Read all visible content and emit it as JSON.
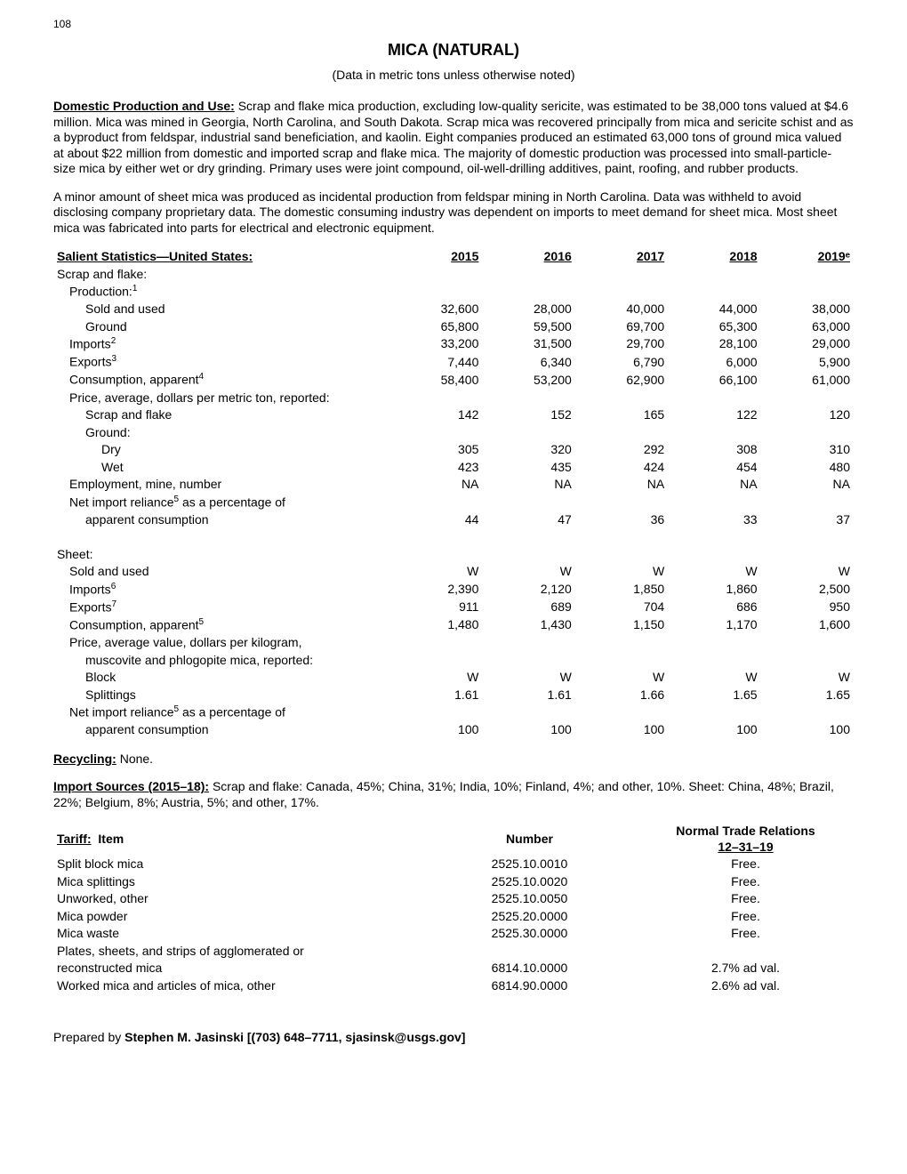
{
  "page_number": "108",
  "title": "MICA (NATURAL)",
  "subtitle": "(Data in metric tons unless otherwise noted)",
  "section1_label": "Domestic Production and Use:",
  "section1_text": " Scrap and flake mica production, excluding low-quality sericite, was estimated to be 38,000 tons valued at $4.6 million. Mica was mined in Georgia, North Carolina, and South Dakota. Scrap mica was recovered principally from mica and sericite schist and as a byproduct from feldspar, industrial sand beneficiation, and kaolin. Eight companies produced an estimated 63,000 tons of ground mica valued at about $22 million from domestic and imported scrap and flake mica. The majority of domestic production was processed into small-particle-size mica by either wet or dry grinding. Primary uses were joint compound, oil-well-drilling additives, paint, roofing, and rubber products.",
  "section1_para2": "A minor amount of sheet mica was produced as incidental production from feldspar mining in North Carolina. Data was withheld to avoid disclosing company proprietary data. The domestic consuming industry was dependent on imports to meet demand for sheet mica. Most sheet mica was fabricated into parts for electrical and electronic equipment.",
  "stats_label": "Salient Statistics—United States:",
  "years": [
    "2015",
    "2016",
    "2017",
    "2018",
    "2019ᵉ"
  ],
  "stats_rows": [
    {
      "label": "Scrap and flake:",
      "indent": 0,
      "vals": [
        "",
        "",
        "",
        "",
        ""
      ]
    },
    {
      "label": "Production:",
      "sup": "1",
      "indent": 1,
      "vals": [
        "",
        "",
        "",
        "",
        ""
      ]
    },
    {
      "label": "Sold and used",
      "indent": 2,
      "vals": [
        "32,600",
        "28,000",
        "40,000",
        "44,000",
        "38,000"
      ]
    },
    {
      "label": "Ground",
      "indent": 2,
      "vals": [
        "65,800",
        "59,500",
        "69,700",
        "65,300",
        "63,000"
      ]
    },
    {
      "label": "Imports",
      "sup": "2",
      "indent": 1,
      "vals": [
        "33,200",
        "31,500",
        "29,700",
        "28,100",
        "29,000"
      ]
    },
    {
      "label": "Exports",
      "sup": "3",
      "indent": 1,
      "vals": [
        "7,440",
        "6,340",
        "6,790",
        "6,000",
        "5,900"
      ]
    },
    {
      "label": "Consumption, apparent",
      "sup": "4",
      "indent": 1,
      "vals": [
        "58,400",
        "53,200",
        "62,900",
        "66,100",
        "61,000"
      ]
    },
    {
      "label": "Price, average, dollars per metric ton, reported:",
      "indent": 1,
      "vals": [
        "",
        "",
        "",
        "",
        ""
      ]
    },
    {
      "label": "Scrap and flake",
      "indent": 2,
      "vals": [
        "142",
        "152",
        "165",
        "122",
        "120"
      ]
    },
    {
      "label": "Ground:",
      "indent": 2,
      "vals": [
        "",
        "",
        "",
        "",
        ""
      ]
    },
    {
      "label": "Dry",
      "indent": 3,
      "vals": [
        "305",
        "320",
        "292",
        "308",
        "310"
      ]
    },
    {
      "label": "Wet",
      "indent": 3,
      "vals": [
        "423",
        "435",
        "424",
        "454",
        "480"
      ]
    },
    {
      "label": "Employment, mine, number",
      "indent": 1,
      "vals": [
        "NA",
        "NA",
        "NA",
        "NA",
        "NA"
      ]
    },
    {
      "label": "Net import reliance",
      "sup": "5",
      "label2": " as a percentage of",
      "indent": 1,
      "vals": [
        "",
        "",
        "",
        "",
        ""
      ]
    },
    {
      "label": "apparent consumption",
      "indent": 2,
      "vals": [
        "44",
        "47",
        "36",
        "33",
        "37"
      ]
    },
    {
      "spacer": true
    },
    {
      "label": "Sheet:",
      "indent": 0,
      "vals": [
        "",
        "",
        "",
        "",
        ""
      ]
    },
    {
      "label": "Sold and used",
      "indent": 1,
      "vals": [
        "W",
        "W",
        "W",
        "W",
        "W"
      ]
    },
    {
      "label": "Imports",
      "sup": "6",
      "indent": 1,
      "vals": [
        "2,390",
        "2,120",
        "1,850",
        "1,860",
        "2,500"
      ]
    },
    {
      "label": "Exports",
      "sup": "7",
      "indent": 1,
      "vals": [
        "911",
        "689",
        "704",
        "686",
        "950"
      ]
    },
    {
      "label": "Consumption, apparent",
      "sup": "5",
      "indent": 1,
      "vals": [
        "1,480",
        "1,430",
        "1,150",
        "1,170",
        "1,600"
      ]
    },
    {
      "label": "Price, average value, dollars per kilogram,",
      "indent": 1,
      "vals": [
        "",
        "",
        "",
        "",
        ""
      ]
    },
    {
      "label": "muscovite and phlogopite mica, reported:",
      "indent": 2,
      "vals": [
        "",
        "",
        "",
        "",
        ""
      ]
    },
    {
      "label": "Block",
      "indent": 2,
      "vals": [
        "W",
        "W",
        "W",
        "W",
        "W"
      ]
    },
    {
      "label": "Splittings",
      "indent": 2,
      "vals": [
        "1.61",
        "1.61",
        "1.66",
        "1.65",
        "1.65"
      ]
    },
    {
      "label": "Net import reliance",
      "sup": "5",
      "label2": " as a percentage of",
      "indent": 1,
      "vals": [
        "",
        "",
        "",
        "",
        ""
      ]
    },
    {
      "label": "apparent consumption",
      "indent": 2,
      "vals": [
        "100",
        "100",
        "100",
        "100",
        "100"
      ]
    }
  ],
  "recycling_label": "Recycling:",
  "recycling_text": " None.",
  "import_label": "Import Sources (2015–18):",
  "import_text": " Scrap and flake: Canada, 45%; China, 31%; India, 10%; Finland, 4%; and other, 10%. Sheet: China, 48%; Brazil, 22%; Belgium, 8%; Austria, 5%; and other, 17%.",
  "tariff_label": "Tariff:",
  "tariff_item_label": "Item",
  "tariff_number_label": "Number",
  "tariff_ntr_label": "Normal Trade Relations",
  "tariff_date": "12–31–19",
  "tariff_rows": [
    {
      "item": "Split block mica",
      "number": "2525.10.0010",
      "ntr": "Free.",
      "indent": 0
    },
    {
      "item": "Mica splittings",
      "number": "2525.10.0020",
      "ntr": "Free.",
      "indent": 0
    },
    {
      "item": "Unworked, other",
      "number": "2525.10.0050",
      "ntr": "Free.",
      "indent": 0
    },
    {
      "item": "Mica powder",
      "number": "2525.20.0000",
      "ntr": "Free.",
      "indent": 0
    },
    {
      "item": "Mica waste",
      "number": "2525.30.0000",
      "ntr": "Free.",
      "indent": 0
    },
    {
      "item": "Plates, sheets, and strips of agglomerated or",
      "number": "",
      "ntr": "",
      "indent": 0
    },
    {
      "item": "reconstructed mica",
      "number": "6814.10.0000",
      "ntr": "2.7% ad val.",
      "indent": 1
    },
    {
      "item": "Worked mica and articles of mica, other",
      "number": "6814.90.0000",
      "ntr": "2.6% ad val.",
      "indent": 0
    }
  ],
  "prepared_prefix": "Prepared by ",
  "prepared_author": "Stephen M. Jasinski [(703) 648–7711, sjasinsk@usgs.gov]"
}
